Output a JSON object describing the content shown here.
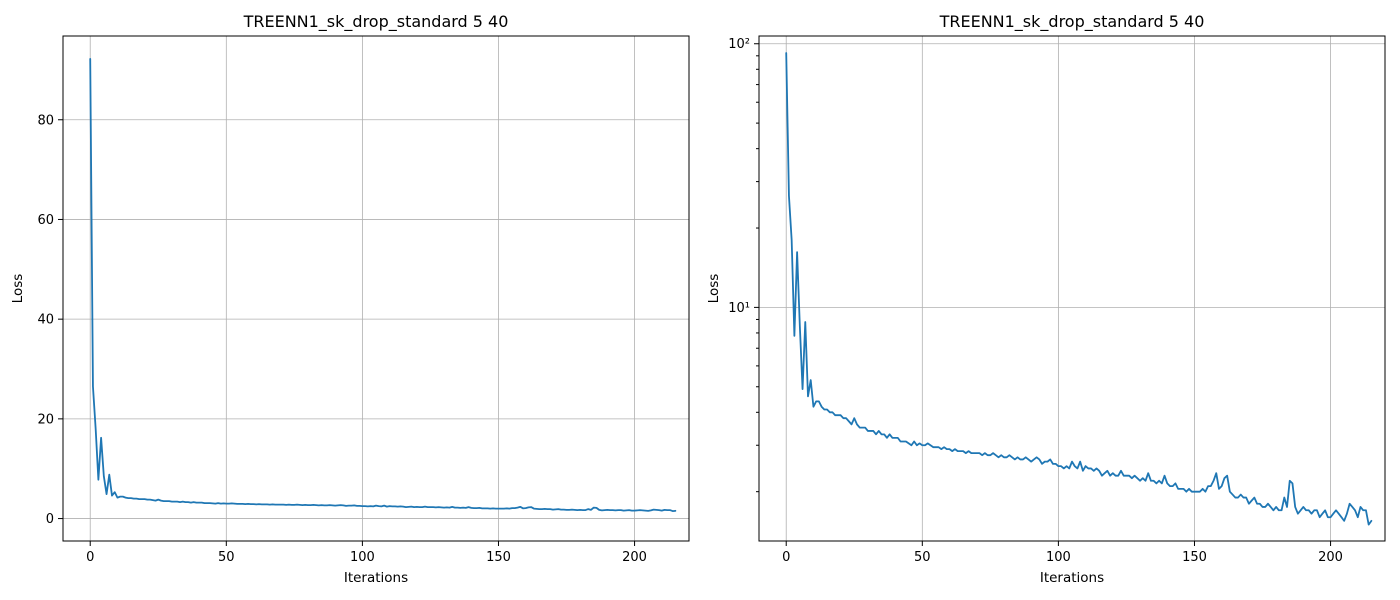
{
  "chart_data": [
    {
      "type": "line",
      "title": "TREENN1_sk_drop_standard 5 40",
      "xlabel": "Iterations",
      "ylabel": "Loss",
      "yscale": "linear",
      "xlim": [
        -10,
        220
      ],
      "ylim": [
        -4.5,
        96.8
      ],
      "xticks": [
        0,
        50,
        100,
        150,
        200
      ],
      "yticks": [
        0,
        20,
        40,
        60,
        80
      ],
      "xtick_labels": [
        "0",
        "50",
        "100",
        "150",
        "200"
      ],
      "ytick_labels": [
        "0",
        "20",
        "40",
        "60",
        "80"
      ],
      "grid": true,
      "color": "#1f77b4",
      "series_ref": "loss"
    },
    {
      "type": "line",
      "title": "TREENN1_sk_drop_standard 5 40",
      "xlabel": "Iterations",
      "ylabel": "Loss",
      "yscale": "log",
      "xlim": [
        -10,
        220
      ],
      "ylim": [
        1.3,
        107
      ],
      "xticks": [
        0,
        50,
        100,
        150,
        200
      ],
      "yticks": [
        10,
        100
      ],
      "xtick_labels": [
        "0",
        "50",
        "100",
        "150",
        "200"
      ],
      "ytick_labels": [
        "10¹",
        "10²"
      ],
      "grid": true,
      "color": "#1f77b4",
      "series_ref": "loss"
    }
  ],
  "series": {
    "loss": {
      "x_start": 0,
      "x_step": 1,
      "y": [
        92.2,
        26.5,
        18.0,
        7.8,
        16.2,
        8.5,
        4.9,
        8.8,
        4.6,
        5.3,
        4.2,
        4.4,
        4.4,
        4.2,
        4.1,
        4.1,
        4.0,
        4.0,
        3.9,
        3.9,
        3.9,
        3.8,
        3.8,
        3.7,
        3.6,
        3.8,
        3.6,
        3.5,
        3.5,
        3.5,
        3.4,
        3.4,
        3.4,
        3.3,
        3.4,
        3.3,
        3.3,
        3.2,
        3.3,
        3.2,
        3.2,
        3.2,
        3.1,
        3.1,
        3.1,
        3.05,
        3.0,
        3.1,
        3.0,
        3.05,
        3.0,
        3.0,
        3.05,
        3.0,
        2.95,
        2.95,
        2.95,
        2.9,
        2.95,
        2.9,
        2.9,
        2.85,
        2.9,
        2.85,
        2.85,
        2.85,
        2.8,
        2.85,
        2.8,
        2.8,
        2.8,
        2.8,
        2.75,
        2.8,
        2.75,
        2.75,
        2.8,
        2.75,
        2.7,
        2.75,
        2.7,
        2.7,
        2.75,
        2.7,
        2.65,
        2.7,
        2.65,
        2.65,
        2.7,
        2.65,
        2.6,
        2.65,
        2.7,
        2.65,
        2.55,
        2.6,
        2.6,
        2.65,
        2.55,
        2.55,
        2.5,
        2.5,
        2.45,
        2.5,
        2.45,
        2.6,
        2.5,
        2.45,
        2.6,
        2.4,
        2.5,
        2.45,
        2.45,
        2.4,
        2.45,
        2.4,
        2.3,
        2.35,
        2.4,
        2.3,
        2.35,
        2.3,
        2.3,
        2.4,
        2.3,
        2.3,
        2.3,
        2.25,
        2.3,
        2.25,
        2.2,
        2.25,
        2.2,
        2.35,
        2.2,
        2.2,
        2.15,
        2.2,
        2.15,
        2.3,
        2.15,
        2.1,
        2.1,
        2.15,
        2.05,
        2.05,
        2.05,
        2.0,
        2.05,
        2.0,
        2.0,
        2.0,
        2.0,
        2.05,
        2.0,
        2.1,
        2.1,
        2.2,
        2.35,
        2.05,
        2.1,
        2.25,
        2.3,
        2.0,
        1.95,
        1.9,
        1.9,
        1.95,
        1.9,
        1.9,
        1.8,
        1.85,
        1.9,
        1.8,
        1.8,
        1.75,
        1.75,
        1.8,
        1.75,
        1.7,
        1.75,
        1.7,
        1.7,
        1.9,
        1.75,
        2.2,
        2.15,
        1.75,
        1.65,
        1.7,
        1.75,
        1.7,
        1.7,
        1.65,
        1.7,
        1.7,
        1.6,
        1.65,
        1.7,
        1.6,
        1.6,
        1.65,
        1.7,
        1.65,
        1.6,
        1.55,
        1.65,
        1.8,
        1.75,
        1.7,
        1.6,
        1.75,
        1.7,
        1.7,
        1.5,
        1.55
      ]
    }
  }
}
